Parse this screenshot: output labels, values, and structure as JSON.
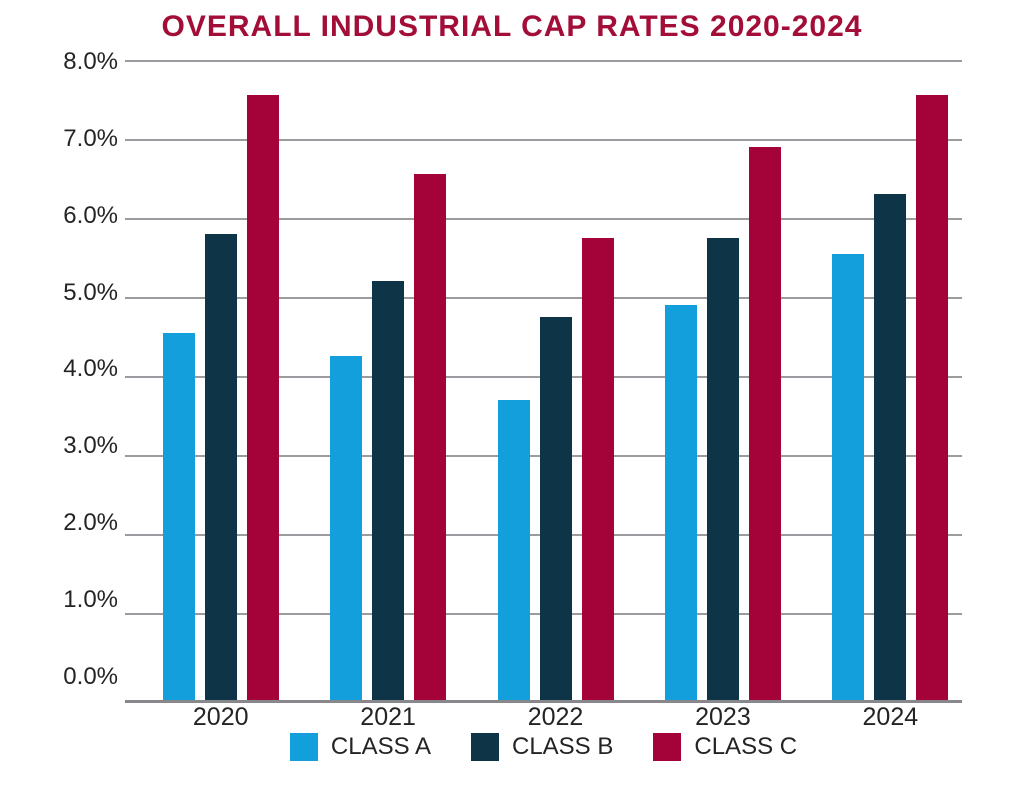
{
  "colors": {
    "background": "#FFFFFF",
    "title": "#A30E39",
    "text": "#242427",
    "gridline": "#9C9CA0",
    "axis_line": "#88888C",
    "class_a": "#129FDC",
    "class_b": "#0E3447",
    "class_c": "#A40339"
  },
  "chart_data": {
    "type": "bar",
    "title": "OVERALL INDUSTRIAL CAP RATES 2020-2024",
    "xlabel": "",
    "ylabel": "",
    "categories": [
      "2020",
      "2021",
      "2022",
      "2023",
      "2024"
    ],
    "series": [
      {
        "name": "CLASS A",
        "color": "#129FDC",
        "values": [
          4.55,
          4.25,
          3.7,
          4.9,
          5.55
        ]
      },
      {
        "name": "CLASS B",
        "color": "#0E3447",
        "values": [
          5.8,
          5.2,
          4.75,
          5.75,
          6.3
        ]
      },
      {
        "name": "CLASS C",
        "color": "#A40339",
        "values": [
          7.55,
          6.55,
          5.75,
          6.9,
          7.55
        ]
      }
    ],
    "y_ticks": [
      "8.0%",
      "7.0%",
      "6.0%",
      "5.0%",
      "4.0%",
      "3.0%",
      "2.0%",
      "1.0%",
      "0.0%"
    ],
    "ylim": [
      0,
      8
    ],
    "grid": true,
    "grid_note": "horizontal gridlines at 1.0% steps; no gridline at 0.0%; bars extend slightly below the 0.0% level to the axis baseline",
    "legend_position": "bottom"
  }
}
